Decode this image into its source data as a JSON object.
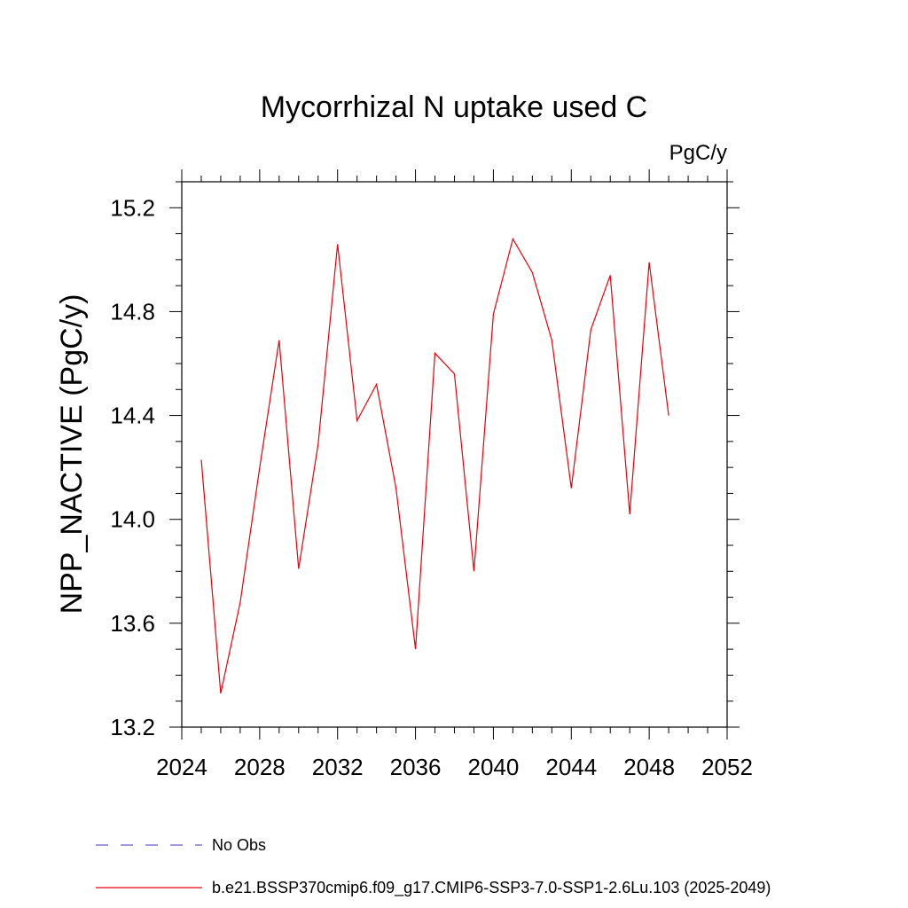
{
  "chart_data": {
    "type": "line",
    "title": "Mycorrhizal N uptake used C",
    "units_label": "PgC/y",
    "ylabel": "NPP_NACTIVE  (PgC/y)",
    "xlabel": "",
    "xlim": [
      2024,
      2052
    ],
    "ylim": [
      13.2,
      15.3
    ],
    "x_ticks": [
      2024,
      2028,
      2032,
      2036,
      2040,
      2044,
      2048,
      2052
    ],
    "y_ticks": [
      13.2,
      13.6,
      14.0,
      14.4,
      14.8,
      15.2
    ],
    "x_tick_labels": [
      "2024",
      "2028",
      "2032",
      "2036",
      "2040",
      "2044",
      "2048",
      "2052"
    ],
    "y_tick_labels": [
      "13.2",
      "13.6",
      "14.0",
      "14.4",
      "14.8",
      "15.2"
    ],
    "grid": false,
    "legend_position": "bottom-left",
    "series": [
      {
        "name": "b.e21.BSSP370cmip6.f09_g17.CMIP6-SSP3-7.0-SSP1-2.6Lu.103 (2025-2049)",
        "color": "#e8000b",
        "style": "solid",
        "x": [
          2025,
          2026,
          2027,
          2028,
          2029,
          2030,
          2031,
          2032,
          2033,
          2034,
          2035,
          2036,
          2037,
          2038,
          2039,
          2040,
          2041,
          2042,
          2043,
          2044,
          2045,
          2046,
          2047,
          2048,
          2049
        ],
        "y": [
          14.23,
          13.33,
          13.68,
          14.2,
          14.69,
          13.81,
          14.29,
          15.06,
          14.38,
          14.52,
          14.12,
          13.5,
          14.64,
          14.56,
          13.8,
          14.79,
          15.08,
          14.95,
          14.69,
          14.12,
          14.73,
          14.94,
          14.02,
          14.99,
          14.4
        ]
      }
    ],
    "legend": [
      {
        "label": "No Obs",
        "color": "#6a5acd",
        "style": "dashed"
      },
      {
        "label": "b.e21.BSSP370cmip6.f09_g17.CMIP6-SSP3-7.0-SSP1-2.6Lu.103 (2025-2049)",
        "color": "#e8000b",
        "style": "solid"
      }
    ]
  }
}
